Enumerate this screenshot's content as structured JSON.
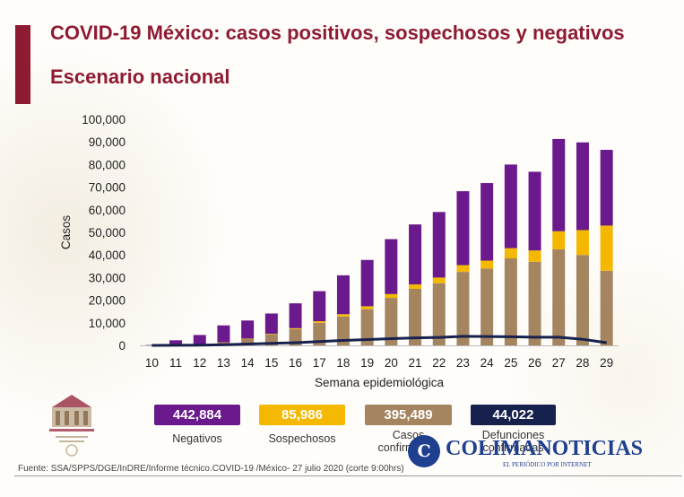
{
  "header": {
    "title": "COVID-19 México: casos positivos, sospechosos y negativos",
    "subtitle": "Escenario nacional"
  },
  "colors": {
    "brand": "#8e1b32",
    "negativos": "#6a1a8c",
    "sospechosos": "#f5b800",
    "confirmados": "#a48560",
    "defunciones": "#17214d"
  },
  "chart_data": {
    "type": "bar",
    "stacked": true,
    "xlabel": "Semana epidemiológica",
    "ylabel": "Casos",
    "ylim": [
      0,
      100000
    ],
    "yticks": [
      "0",
      "10,000",
      "20,000",
      "30,000",
      "40,000",
      "50,000",
      "60,000",
      "70,000",
      "80,000",
      "90,000",
      "100,000"
    ],
    "categories": [
      "10",
      "11",
      "12",
      "13",
      "14",
      "15",
      "16",
      "17",
      "18",
      "19",
      "20",
      "21",
      "22",
      "23",
      "24",
      "25",
      "26",
      "27",
      "28",
      "29"
    ],
    "series": [
      {
        "key": "confirmados",
        "values": [
          30,
          200,
          500,
          1200,
          2800,
          4800,
          7200,
          10000,
          12800,
          16000,
          21000,
          25000,
          27500,
          32500,
          34000,
          38500,
          37000,
          42500,
          40000,
          33000
        ]
      },
      {
        "key": "sospechosos",
        "values": [
          10,
          50,
          100,
          150,
          200,
          300,
          400,
          700,
          1000,
          1300,
          1700,
          2000,
          2500,
          3000,
          3500,
          4500,
          5000,
          8000,
          11000,
          20000
        ]
      },
      {
        "key": "negativos",
        "values": [
          150,
          2000,
          4000,
          7500,
          8000,
          9000,
          11000,
          13300,
          17200,
          20500,
          24300,
          26500,
          29000,
          32700,
          34300,
          37000,
          34800,
          40800,
          38800,
          33500
        ]
      },
      {
        "key": "defunciones",
        "type": "line",
        "values": [
          5,
          50,
          120,
          300,
          600,
          900,
          1200,
          1700,
          2200,
          2600,
          3000,
          3300,
          3500,
          4000,
          3900,
          3800,
          3600,
          3600,
          2700,
          1200
        ]
      }
    ]
  },
  "summary": {
    "negativos": {
      "value": "442,884",
      "label": "Negativos"
    },
    "sospechosos": {
      "value": "85,986",
      "label": "Sospechosos"
    },
    "confirmados": {
      "value": "395,489",
      "label": "Casos confirmados"
    },
    "defunciones": {
      "value": "44,022",
      "label": "Defunciones confirmadas"
    }
  },
  "footer": {
    "source": "Fuente: SSA/SPPS/DGE/InDRE/Informe técnico.COVID-19 /México- 27 julio 2020 (corte 9:00hrs)"
  },
  "watermark": {
    "logo": "C",
    "name": "COLIMANOTICIAS",
    "tagline": "EL PERIÓDICO POR INTERNET"
  }
}
